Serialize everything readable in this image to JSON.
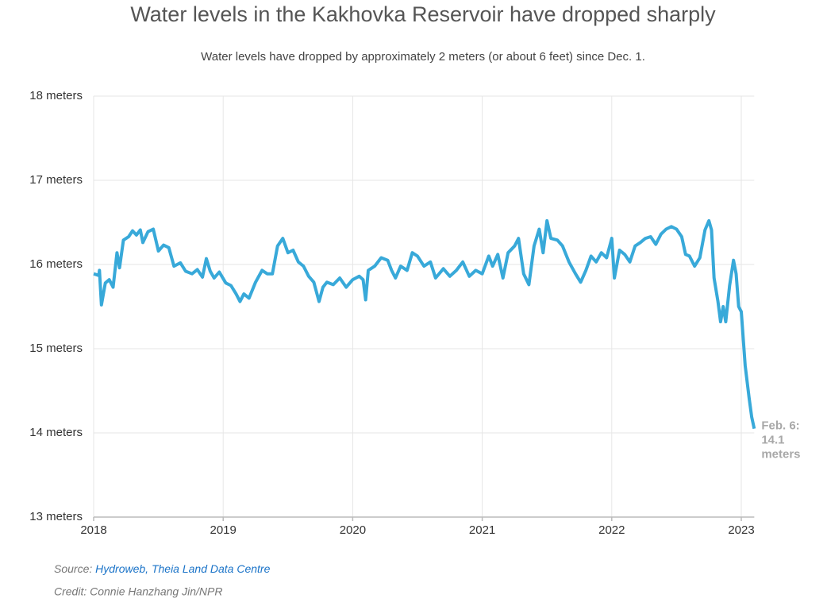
{
  "chart_data": {
    "type": "line",
    "title": "Water levels in the Kakhovka Reservoir have dropped sharply",
    "subtitle": "Water levels have dropped by approximately 2 meters (or about 6 feet) since Dec. 1.",
    "xlim": [
      2018,
      2023.1
    ],
    "xticks": [
      2018,
      2019,
      2020,
      2021,
      2022,
      2023
    ],
    "ylim": [
      13,
      18
    ],
    "yticks": [
      {
        "value": 13,
        "label": "13 meters"
      },
      {
        "value": 14,
        "label": "14 meters"
      },
      {
        "value": 15,
        "label": "15 meters"
      },
      {
        "value": 16,
        "label": "16 meters"
      },
      {
        "value": 17,
        "label": "17 meters"
      },
      {
        "value": 18,
        "label": "18 meters"
      }
    ],
    "grid": true,
    "series": [
      {
        "color": "#38a9d9",
        "x": [
          2018.0,
          2018.04,
          2018.045,
          2018.06,
          2018.09,
          2018.12,
          2018.15,
          2018.18,
          2018.2,
          2018.23,
          2018.27,
          2018.3,
          2018.33,
          2018.36,
          2018.38,
          2018.42,
          2018.46,
          2018.5,
          2018.54,
          2018.58,
          2018.62,
          2018.67,
          2018.71,
          2018.76,
          2018.8,
          2018.84,
          2018.87,
          2018.9,
          2018.93,
          2018.97,
          2019.02,
          2019.06,
          2019.1,
          2019.13,
          2019.16,
          2019.2,
          2019.25,
          2019.3,
          2019.34,
          2019.38,
          2019.42,
          2019.46,
          2019.5,
          2019.54,
          2019.58,
          2019.62,
          2019.66,
          2019.7,
          2019.74,
          2019.77,
          2019.8,
          2019.85,
          2019.9,
          2019.95,
          2020.0,
          2020.05,
          2020.08,
          2020.1,
          2020.12,
          2020.17,
          2020.22,
          2020.27,
          2020.3,
          2020.33,
          2020.37,
          2020.42,
          2020.46,
          2020.5,
          2020.55,
          2020.6,
          2020.64,
          2020.7,
          2020.75,
          2020.8,
          2020.85,
          2020.9,
          2020.95,
          2021.0,
          2021.05,
          2021.08,
          2021.12,
          2021.16,
          2021.2,
          2021.25,
          2021.28,
          2021.32,
          2021.36,
          2021.4,
          2021.44,
          2021.47,
          2021.5,
          2021.53,
          2021.58,
          2021.62,
          2021.67,
          2021.72,
          2021.76,
          2021.8,
          2021.84,
          2021.88,
          2021.92,
          2021.96,
          2022.0,
          2022.02,
          2022.06,
          2022.1,
          2022.14,
          2022.18,
          2022.22,
          2022.26,
          2022.3,
          2022.34,
          2022.38,
          2022.42,
          2022.46,
          2022.5,
          2022.54,
          2022.57,
          2022.6,
          2022.64,
          2022.68,
          2022.72,
          2022.75,
          2022.77,
          2022.79,
          2022.82,
          2022.84,
          2022.86,
          2022.88,
          2022.91,
          2022.94,
          2022.96,
          2022.98,
          2023.0,
          2023.03,
          2023.06,
          2023.08,
          2023.1
        ],
        "values": [
          15.89,
          15.87,
          15.93,
          15.52,
          15.78,
          15.82,
          15.73,
          16.14,
          15.96,
          16.29,
          16.33,
          16.4,
          16.35,
          16.41,
          16.26,
          16.39,
          16.42,
          16.16,
          16.23,
          16.2,
          15.98,
          16.02,
          15.92,
          15.89,
          15.94,
          15.85,
          16.07,
          15.92,
          15.84,
          15.91,
          15.78,
          15.75,
          15.65,
          15.56,
          15.65,
          15.6,
          15.79,
          15.93,
          15.89,
          15.89,
          16.22,
          16.31,
          16.14,
          16.17,
          16.03,
          15.98,
          15.86,
          15.79,
          15.56,
          15.73,
          15.79,
          15.76,
          15.84,
          15.73,
          15.82,
          15.86,
          15.82,
          15.58,
          15.93,
          15.98,
          16.08,
          16.05,
          15.93,
          15.84,
          15.98,
          15.93,
          16.14,
          16.1,
          15.98,
          16.03,
          15.84,
          15.95,
          15.86,
          15.93,
          16.03,
          15.86,
          15.93,
          15.89,
          16.1,
          15.98,
          16.12,
          15.84,
          16.14,
          16.22,
          16.31,
          15.89,
          15.76,
          16.22,
          16.42,
          16.14,
          16.52,
          16.31,
          16.29,
          16.22,
          16.03,
          15.89,
          15.79,
          15.93,
          16.1,
          16.03,
          16.14,
          16.08,
          16.31,
          15.84,
          16.17,
          16.12,
          16.03,
          16.22,
          16.26,
          16.31,
          16.33,
          16.24,
          16.36,
          16.42,
          16.45,
          16.42,
          16.33,
          16.12,
          16.1,
          15.98,
          16.08,
          16.41,
          16.52,
          16.41,
          15.84,
          15.56,
          15.32,
          15.5,
          15.32,
          15.75,
          16.05,
          15.89,
          15.5,
          15.44,
          14.8,
          14.42,
          14.19,
          14.05
        ]
      }
    ],
    "annotation": [
      "Feb. 6:",
      "14.1",
      "meters"
    ],
    "source_label": "Source:",
    "source": "Hydroweb, Theia Land Data Centre",
    "credit": "Credit: Connie Hanzhang Jin/NPR"
  }
}
